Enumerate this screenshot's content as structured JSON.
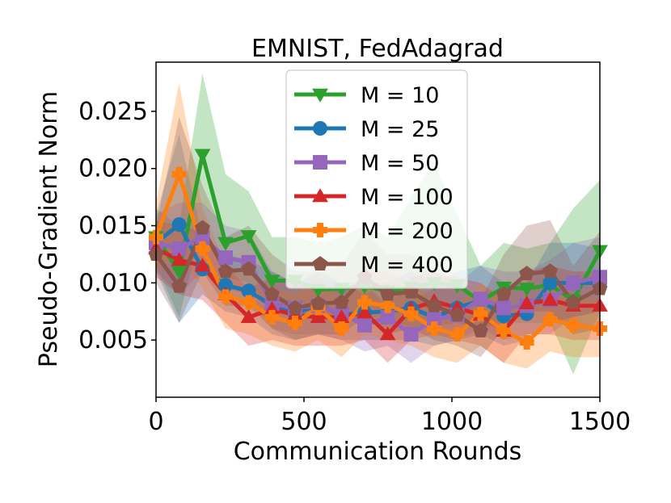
{
  "chart_data": {
    "type": "line",
    "title": "EMNIST, FedAdagrad",
    "xlabel": "Communication Rounds",
    "ylabel": "Pseudo-Gradient Norm",
    "xlim": [
      0,
      1500
    ],
    "ylim": [
      0.0,
      0.0293
    ],
    "xticks": [
      0,
      500,
      1000,
      1500
    ],
    "xtick_labels": [
      "0",
      "500",
      "1000",
      "1500"
    ],
    "yticks": [
      0.005,
      0.01,
      0.015,
      0.02,
      0.025
    ],
    "ytick_labels": [
      "0.005",
      "0.010",
      "0.015",
      "0.020",
      "0.025"
    ],
    "grid": false,
    "legend_position": "top-center",
    "x": [
      0,
      78,
      157,
      235,
      313,
      392,
      470,
      548,
      627,
      705,
      783,
      862,
      940,
      1018,
      1097,
      1175,
      1253,
      1332,
      1410,
      1500
    ],
    "series": [
      {
        "name": "M = 10",
        "color": "#2ca02c",
        "marker": "triangle-down",
        "values": [
          0.014,
          0.011,
          0.0212,
          0.0135,
          0.0141,
          0.0102,
          0.0102,
          0.0094,
          0.0095,
          0.0097,
          0.0093,
          0.0096,
          0.01,
          0.0098,
          0.0084,
          0.0096,
          0.0095,
          0.0098,
          0.0085,
          0.0128
        ],
        "lower": [
          0.0115,
          0.007,
          0.015,
          0.0105,
          0.01,
          0.0078,
          0.0075,
          0.007,
          0.0065,
          0.007,
          0.007,
          0.006,
          0.0062,
          0.0065,
          0.006,
          0.0065,
          0.0065,
          0.0065,
          0.002,
          0.0075
        ],
        "upper": [
          0.0165,
          0.015,
          0.0283,
          0.0195,
          0.018,
          0.014,
          0.014,
          0.0135,
          0.014,
          0.015,
          0.014,
          0.0175,
          0.0205,
          0.016,
          0.0115,
          0.0135,
          0.013,
          0.0135,
          0.0165,
          0.019
        ]
      },
      {
        "name": "M = 25",
        "color": "#1f77b4",
        "marker": "circle",
        "values": [
          0.0135,
          0.0151,
          0.0112,
          0.0098,
          0.0093,
          0.008,
          0.0073,
          0.0081,
          0.0072,
          0.0074,
          0.0075,
          0.0078,
          0.007,
          0.0078,
          0.0085,
          0.0071,
          0.0073,
          0.01,
          0.01,
          0.01
        ],
        "lower": [
          0.011,
          0.0065,
          0.009,
          0.0075,
          0.007,
          0.0055,
          0.005,
          0.0055,
          0.005,
          0.005,
          0.005,
          0.005,
          0.0045,
          0.005,
          0.0055,
          0.0045,
          0.005,
          0.0065,
          0.007,
          0.0075
        ],
        "upper": [
          0.016,
          0.023,
          0.014,
          0.0125,
          0.012,
          0.011,
          0.01,
          0.011,
          0.01,
          0.01,
          0.01,
          0.011,
          0.01,
          0.011,
          0.0115,
          0.01,
          0.01,
          0.0135,
          0.0135,
          0.013
        ]
      },
      {
        "name": "M = 50",
        "color": "#9467bd",
        "marker": "square",
        "values": [
          0.0135,
          0.013,
          0.014,
          0.0122,
          0.0118,
          0.0082,
          0.0078,
          0.008,
          0.0073,
          0.0063,
          0.007,
          0.0055,
          0.0068,
          0.0072,
          0.0086,
          0.0078,
          0.008,
          0.0085,
          0.01,
          0.0105
        ],
        "lower": [
          0.011,
          0.009,
          0.011,
          0.0095,
          0.009,
          0.006,
          0.0055,
          0.0055,
          0.005,
          0.004,
          0.0045,
          0.003,
          0.0045,
          0.005,
          0.006,
          0.005,
          0.0055,
          0.0055,
          0.007,
          0.0075
        ],
        "upper": [
          0.016,
          0.017,
          0.017,
          0.015,
          0.0145,
          0.011,
          0.01,
          0.0105,
          0.01,
          0.009,
          0.01,
          0.0085,
          0.0095,
          0.01,
          0.0115,
          0.011,
          0.011,
          0.012,
          0.0135,
          0.014
        ]
      },
      {
        "name": "M = 100",
        "color": "#d62728",
        "marker": "triangle-up",
        "values": [
          0.013,
          0.012,
          0.0115,
          0.009,
          0.007,
          0.0077,
          0.0072,
          0.007,
          0.007,
          0.0074,
          0.0055,
          0.0077,
          0.0084,
          0.0078,
          0.0072,
          0.0058,
          0.0082,
          0.0085,
          0.008,
          0.008
        ],
        "lower": [
          0.0105,
          0.009,
          0.0085,
          0.0065,
          0.0045,
          0.005,
          0.0045,
          0.0045,
          0.0045,
          0.005,
          0.003,
          0.005,
          0.0055,
          0.005,
          0.0045,
          0.003,
          0.0055,
          0.0055,
          0.005,
          0.005
        ],
        "upper": [
          0.0155,
          0.015,
          0.0145,
          0.0115,
          0.0095,
          0.0105,
          0.01,
          0.0095,
          0.0095,
          0.01,
          0.008,
          0.0105,
          0.011,
          0.0105,
          0.01,
          0.0085,
          0.011,
          0.0115,
          0.011,
          0.011
        ]
      },
      {
        "name": "M = 200",
        "color": "#ff7f0e",
        "marker": "plus",
        "values": [
          0.014,
          0.0195,
          0.013,
          0.0088,
          0.0083,
          0.007,
          0.0065,
          0.0078,
          0.006,
          0.0083,
          0.008,
          0.0073,
          0.006,
          0.0055,
          0.0073,
          0.0058,
          0.0048,
          0.0068,
          0.0063,
          0.006
        ],
        "lower": [
          0.011,
          0.0125,
          0.0095,
          0.006,
          0.0055,
          0.0045,
          0.004,
          0.005,
          0.0035,
          0.0055,
          0.005,
          0.0045,
          0.0035,
          0.003,
          0.0045,
          0.003,
          0.0025,
          0.004,
          0.0035,
          0.0035
        ],
        "upper": [
          0.017,
          0.0275,
          0.0165,
          0.0115,
          0.011,
          0.0095,
          0.009,
          0.0105,
          0.0085,
          0.011,
          0.011,
          0.01,
          0.0085,
          0.008,
          0.01,
          0.0085,
          0.0075,
          0.0095,
          0.009,
          0.0085
        ]
      },
      {
        "name": "M = 400",
        "color": "#8c564b",
        "marker": "pentagon",
        "values": [
          0.0125,
          0.0097,
          0.0148,
          0.011,
          0.0112,
          0.009,
          0.0078,
          0.0082,
          0.0083,
          0.0105,
          0.009,
          0.0092,
          0.008,
          0.0072,
          0.0058,
          0.009,
          0.0108,
          0.011,
          0.0083,
          0.0095
        ],
        "lower": [
          0.01,
          0.0065,
          0.011,
          0.008,
          0.008,
          0.006,
          0.005,
          0.0055,
          0.0055,
          0.007,
          0.0055,
          0.006,
          0.005,
          0.0045,
          0.0035,
          0.006,
          0.0075,
          0.0075,
          0.0055,
          0.006
        ],
        "upper": [
          0.015,
          0.0245,
          0.0185,
          0.014,
          0.015,
          0.0125,
          0.011,
          0.011,
          0.0115,
          0.0145,
          0.0125,
          0.0125,
          0.011,
          0.01,
          0.0085,
          0.0125,
          0.015,
          0.0155,
          0.0115,
          0.0145
        ]
      }
    ]
  }
}
